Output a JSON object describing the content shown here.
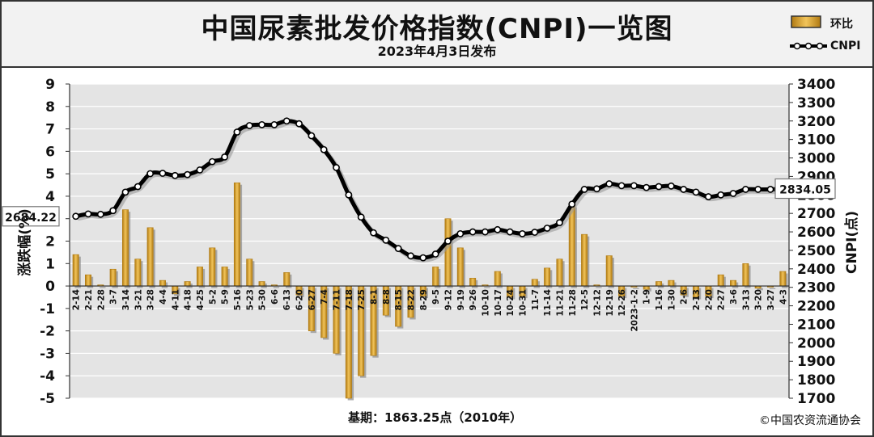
{
  "header": {
    "title": "中国尿素批发价格指数(CNPI)一览图",
    "subtitle": "2023年4月3日发布"
  },
  "legend": {
    "bar_label": "环比",
    "line_label": "CNPI"
  },
  "footer": {
    "base_note": "基期：1863.25点（2010年）",
    "copyright": "©中国农资流通协会"
  },
  "colors": {
    "bar_gradient_dark": "#b07a12",
    "bar_gradient_light": "#f2c45a",
    "line": "#000000",
    "plot_background": "#e4e4e4",
    "grid": "#ffffff"
  },
  "chart_data": {
    "type": "bar+line",
    "left_axis_label": "涨跌幅(%)",
    "right_axis_label": "CNPI(点)",
    "left_ylim": [
      -5,
      9
    ],
    "right_ylim": [
      1700,
      3400
    ],
    "left_ticks": [
      "9",
      "8",
      "7",
      "6",
      "5",
      "4",
      "3",
      "2",
      "1",
      "0",
      "-1",
      "-2",
      "-3",
      "-4",
      "-5"
    ],
    "right_ticks": [
      "3400",
      "3300",
      "3200",
      "3100",
      "3000",
      "2900",
      "2800",
      "2700",
      "2600",
      "2500",
      "2400",
      "2300",
      "2200",
      "2100",
      "2000",
      "1900",
      "1800",
      "1700"
    ],
    "grid": true,
    "start_label": "2684.22",
    "end_label": "2834.05",
    "categories": [
      "2-14",
      "2-21",
      "2-28",
      "3-7",
      "3-14",
      "3-21",
      "3-28",
      "4-4",
      "4-11",
      "4-18",
      "4-25",
      "5-2",
      "5-9",
      "5-16",
      "5-23",
      "5-30",
      "6-6",
      "6-13",
      "6-20",
      "6-27",
      "7-4",
      "7-11",
      "7-18",
      "7-25",
      "8-1",
      "8-8",
      "8-15",
      "8-22",
      "8-29",
      "9-5",
      "9-12",
      "9-19",
      "9-26",
      "10-10",
      "10-17",
      "10-24",
      "10-31",
      "11-7",
      "11-14",
      "11-21",
      "11-28",
      "12-5",
      "12-12",
      "12-19",
      "12-26",
      "2023-1-2",
      "1-9",
      "1-16",
      "1-30",
      "2-6",
      "2-13",
      "2-20",
      "2-27",
      "3-6",
      "3-13",
      "3-20",
      "3-27",
      "4-3"
    ],
    "series": [
      {
        "name": "环比",
        "type": "bar",
        "axis": "left",
        "values": [
          1.4,
          0.5,
          0.05,
          0.75,
          3.4,
          1.2,
          2.6,
          0.25,
          -0.35,
          0.2,
          0.85,
          1.7,
          0.85,
          4.6,
          1.2,
          0.2,
          0.05,
          0.6,
          -0.4,
          -2.0,
          -2.3,
          -3.0,
          -5.0,
          -4.0,
          -3.1,
          -1.3,
          -1.8,
          -1.4,
          -0.45,
          0.85,
          3.0,
          1.7,
          0.35,
          0.05,
          0.65,
          -0.5,
          -0.45,
          0.3,
          0.8,
          1.2,
          3.6,
          2.3,
          0.05,
          1.35,
          -0.45,
          -0.05,
          -0.15,
          0.2,
          0.25,
          -0.4,
          -0.5,
          -0.45,
          0.5,
          0.25,
          1.0,
          -0.1,
          -0.05,
          0.65
        ]
      },
      {
        "name": "CNPI",
        "type": "line",
        "axis": "right",
        "values": [
          2684.22,
          2697,
          2695,
          2715,
          2815,
          2845,
          2915,
          2917,
          2905,
          2910,
          2935,
          2980,
          3005,
          3140,
          3175,
          3180,
          3180,
          3200,
          3185,
          3120,
          3045,
          2948,
          2800,
          2680,
          2595,
          2555,
          2510,
          2470,
          2460,
          2480,
          2550,
          2590,
          2600,
          2600,
          2612,
          2600,
          2590,
          2598,
          2620,
          2650,
          2750,
          2830,
          2833,
          2860,
          2850,
          2850,
          2840,
          2845,
          2848,
          2830,
          2815,
          2790,
          2800,
          2808,
          2830,
          2830,
          2830,
          2834.05
        ]
      }
    ]
  }
}
